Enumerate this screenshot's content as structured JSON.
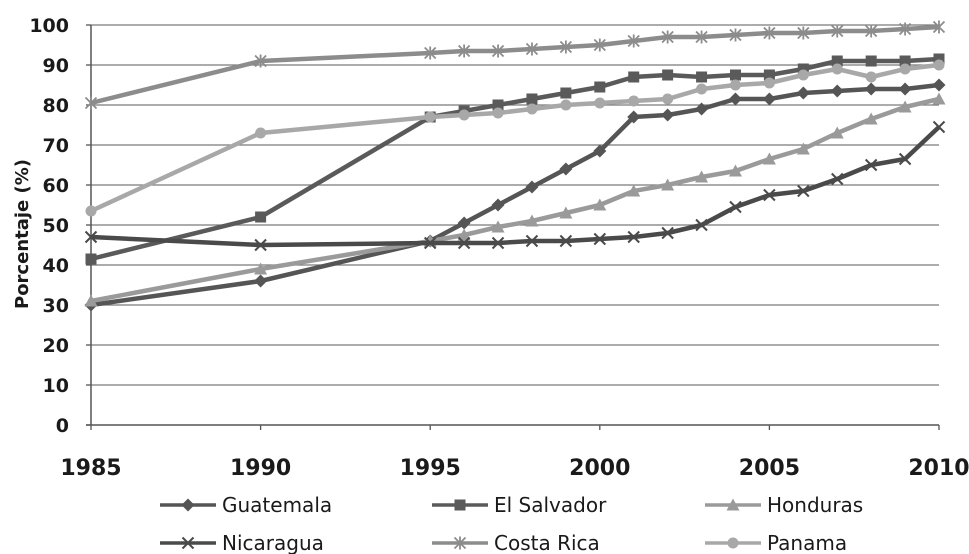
{
  "chart_data": {
    "type": "line",
    "title": "",
    "xlabel": "",
    "ylabel": "Porcentaje (%)",
    "ylim": [
      0,
      100
    ],
    "y_ticks": [
      "0",
      "10",
      "20",
      "30",
      "40",
      "50",
      "60",
      "70",
      "80",
      "90",
      "100"
    ],
    "x_ticks": [
      "1985",
      "1990",
      "1995",
      "2000",
      "2005",
      "2010"
    ],
    "xlim": [
      1985,
      2010
    ],
    "grid": "horizontal",
    "legend_position": "bottom",
    "x": [
      1985,
      1990,
      1995,
      1996,
      1997,
      1998,
      1999,
      2000,
      2001,
      2002,
      2003,
      2004,
      2005,
      2006,
      2007,
      2008,
      2009,
      2010
    ],
    "series": [
      {
        "name": "Guatemala",
        "marker": "diamond",
        "color": "#555555",
        "points": [
          [
            1985,
            30
          ],
          [
            1990,
            36
          ],
          [
            1995,
            46
          ],
          [
            1996,
            50.5
          ],
          [
            1997,
            55
          ],
          [
            1998,
            59.5
          ],
          [
            1999,
            64
          ],
          [
            2000,
            68.5
          ],
          [
            2001,
            77
          ],
          [
            2002,
            77.5
          ],
          [
            2003,
            79
          ],
          [
            2004,
            81.5
          ],
          [
            2005,
            81.5
          ],
          [
            2006,
            83
          ],
          [
            2007,
            83.5
          ],
          [
            2008,
            84
          ],
          [
            2009,
            84
          ],
          [
            2010,
            85
          ]
        ]
      },
      {
        "name": "El Salvador",
        "marker": "square",
        "color": "#5a5a5a",
        "points": [
          [
            1985,
            41.5
          ],
          [
            1990,
            52
          ],
          [
            1995,
            77
          ],
          [
            1996,
            78.5
          ],
          [
            1997,
            80
          ],
          [
            1998,
            81.5
          ],
          [
            1999,
            83
          ],
          [
            2000,
            84.5
          ],
          [
            2001,
            87
          ],
          [
            2002,
            87.5
          ],
          [
            2003,
            87
          ],
          [
            2004,
            87.5
          ],
          [
            2005,
            87.5
          ],
          [
            2006,
            89
          ],
          [
            2007,
            91
          ],
          [
            2008,
            91
          ],
          [
            2009,
            91
          ],
          [
            2010,
            91.5
          ]
        ]
      },
      {
        "name": "Honduras",
        "marker": "triangle",
        "color": "#9a9a9a",
        "points": [
          [
            1985,
            31
          ],
          [
            1990,
            39
          ],
          [
            1995,
            46
          ],
          [
            1996,
            47.5
          ],
          [
            1997,
            49.5
          ],
          [
            1998,
            51
          ],
          [
            1999,
            53
          ],
          [
            2000,
            55
          ],
          [
            2001,
            58.5
          ],
          [
            2002,
            60
          ],
          [
            2003,
            62
          ],
          [
            2004,
            63.5
          ],
          [
            2005,
            66.5
          ],
          [
            2006,
            69
          ],
          [
            2007,
            73
          ],
          [
            2008,
            76.5
          ],
          [
            2009,
            79.5
          ],
          [
            2010,
            81.5
          ]
        ]
      },
      {
        "name": "Nicaragua",
        "marker": "x",
        "color": "#4a4a4a",
        "points": [
          [
            1985,
            47
          ],
          [
            1990,
            45
          ],
          [
            1995,
            45.5
          ],
          [
            1996,
            45.5
          ],
          [
            1997,
            45.5
          ],
          [
            1998,
            46
          ],
          [
            1999,
            46
          ],
          [
            2000,
            46.5
          ],
          [
            2001,
            47
          ],
          [
            2002,
            48
          ],
          [
            2003,
            50
          ],
          [
            2004,
            54.5
          ],
          [
            2005,
            57.5
          ],
          [
            2006,
            58.5
          ],
          [
            2007,
            61.5
          ],
          [
            2008,
            65
          ],
          [
            2009,
            66.5
          ],
          [
            2010,
            74.5
          ]
        ]
      },
      {
        "name": "Costa Rica",
        "marker": "star",
        "color": "#8c8c8c",
        "points": [
          [
            1985,
            80.5
          ],
          [
            1990,
            91
          ],
          [
            1995,
            93
          ],
          [
            1996,
            93.5
          ],
          [
            1997,
            93.5
          ],
          [
            1998,
            94
          ],
          [
            1999,
            94.5
          ],
          [
            2000,
            95
          ],
          [
            2001,
            96
          ],
          [
            2002,
            97
          ],
          [
            2003,
            97
          ],
          [
            2004,
            97.5
          ],
          [
            2005,
            98
          ],
          [
            2006,
            98
          ],
          [
            2007,
            98.5
          ],
          [
            2008,
            98.5
          ],
          [
            2009,
            99
          ],
          [
            2010,
            99.5
          ]
        ]
      },
      {
        "name": "Panama",
        "marker": "circle",
        "color": "#a8a8a8",
        "points": [
          [
            1985,
            53.5
          ],
          [
            1990,
            73
          ],
          [
            1995,
            77
          ],
          [
            1996,
            77.5
          ],
          [
            1997,
            78
          ],
          [
            1998,
            79
          ],
          [
            1999,
            80
          ],
          [
            2000,
            80.5
          ],
          [
            2001,
            81
          ],
          [
            2002,
            81.5
          ],
          [
            2003,
            84
          ],
          [
            2004,
            85
          ],
          [
            2005,
            85.5
          ],
          [
            2006,
            87.5
          ],
          [
            2007,
            89
          ],
          [
            2008,
            87
          ],
          [
            2009,
            89
          ],
          [
            2010,
            90
          ]
        ]
      }
    ]
  }
}
